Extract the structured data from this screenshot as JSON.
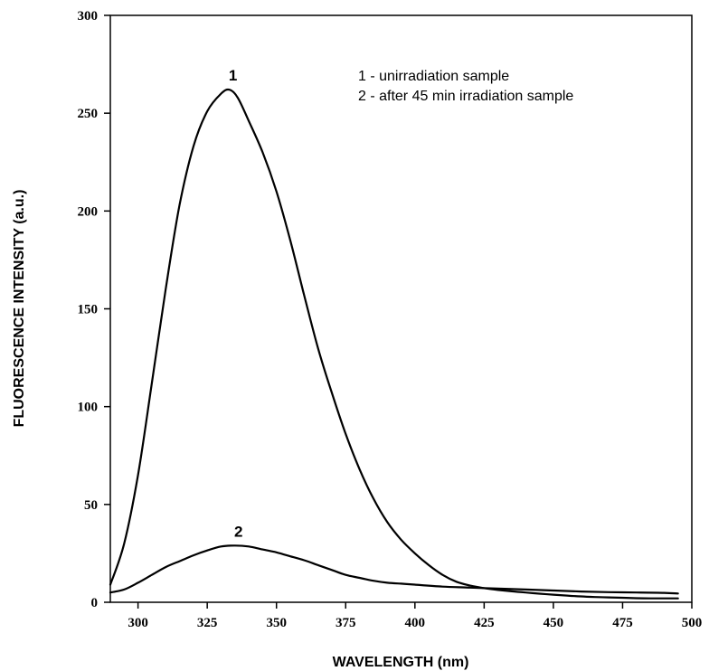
{
  "chart_data": {
    "type": "line",
    "title": "",
    "xlabel": "WAVELENGTH (nm)",
    "ylabel": "FLUORESCENCE INTENSITY (a.u.)",
    "xlim": [
      290,
      500
    ],
    "ylim": [
      0,
      300
    ],
    "xticks": [
      300,
      325,
      350,
      375,
      400,
      425,
      450,
      475,
      500
    ],
    "yticks": [
      0,
      50,
      100,
      150,
      200,
      250,
      300
    ],
    "grid": false,
    "legend": {
      "placement": "top-right",
      "entries": [
        "1 - unirradiation sample",
        "2 - after 45 min irradiation sample"
      ]
    },
    "series": [
      {
        "name": "1",
        "label_at": [
          333,
          262
        ],
        "x": [
          290,
          295,
          300,
          305,
          310,
          315,
          320,
          325,
          330,
          333,
          336,
          340,
          345,
          350,
          355,
          360,
          365,
          370,
          375,
          380,
          385,
          390,
          395,
          400,
          405,
          410,
          415,
          420,
          425,
          430,
          435,
          440,
          445,
          450,
          455,
          460,
          465,
          470,
          475,
          480,
          485,
          490,
          495
        ],
        "y": [
          9,
          30,
          65,
          112,
          160,
          203,
          233,
          251,
          260,
          262,
          258,
          246,
          230,
          210,
          185,
          157,
          130,
          107,
          86,
          68,
          53,
          41,
          32,
          25,
          19,
          14,
          10.5,
          8.5,
          7.2,
          6.3,
          5.6,
          5.0,
          4.4,
          3.9,
          3.4,
          3.0,
          2.7,
          2.5,
          2.3,
          2.1,
          2.0,
          2.0,
          2.0
        ]
      },
      {
        "name": "2",
        "label_at": [
          335,
          29
        ],
        "x": [
          290,
          295,
          300,
          305,
          310,
          315,
          320,
          325,
          330,
          335,
          340,
          345,
          350,
          355,
          360,
          365,
          370,
          375,
          380,
          385,
          390,
          395,
          400,
          410,
          420,
          430,
          440,
          450,
          460,
          470,
          480,
          490,
          495
        ],
        "y": [
          5,
          6.5,
          10,
          14,
          18,
          21,
          24,
          26.5,
          28.5,
          29,
          28.5,
          27,
          25.5,
          23.5,
          21.5,
          19,
          16.5,
          14,
          12.5,
          11,
          10,
          9.5,
          9,
          8,
          7.5,
          7,
          6.5,
          6,
          5.5,
          5.2,
          5,
          4.8,
          4.5
        ]
      }
    ]
  }
}
